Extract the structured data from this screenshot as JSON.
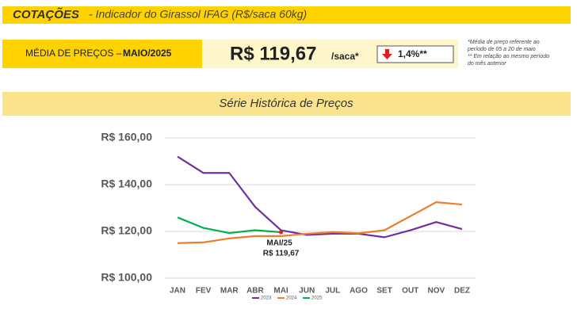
{
  "header": {
    "title": "COTAÇÕES",
    "subtitle": "- Indicador do Girassol IFAG (R$/saca 60kg)"
  },
  "summary": {
    "label": "MÉDIA DE PREÇOS –",
    "period": "MAIO/2025",
    "price": "R$ 119,67",
    "unit": "/saca*",
    "change": "1,4%**",
    "notes": [
      "*Média de preço referente ao",
      "período de 05 a 20 de maio",
      "** Em relação ao mesmo período",
      "do mês anterior"
    ]
  },
  "chart_data": {
    "type": "line",
    "title": "Série Histórica de Preços",
    "categories": [
      "JAN",
      "FEV",
      "MAR",
      "ABR",
      "MAI",
      "JUN",
      "JUL",
      "AGO",
      "SET",
      "OUT",
      "NOV",
      "DEZ"
    ],
    "series": [
      {
        "name": "2023",
        "color": "#7030a0",
        "values": [
          152,
          145,
          145,
          130.5,
          120.5,
          118.5,
          119,
          119,
          117.5,
          120.5,
          124,
          121
        ]
      },
      {
        "name": "2024",
        "color": "#ed7d31",
        "values": [
          115,
          115.3,
          117,
          118,
          118,
          119,
          119.7,
          119.2,
          120.5,
          126.5,
          132.5,
          131.5
        ]
      },
      {
        "name": "2025",
        "color": "#00b050",
        "values": [
          126,
          121.5,
          119.3,
          120.5,
          119.67,
          null,
          null,
          null,
          null,
          null,
          null,
          null
        ]
      }
    ],
    "ylim": [
      100,
      160
    ],
    "yticks": [
      {
        "value": 100,
        "label": "R$ 100,00"
      },
      {
        "value": 120,
        "label": "R$ 120,00"
      },
      {
        "value": 140,
        "label": "R$ 140,00"
      },
      {
        "value": 160,
        "label": "R$ 160,00"
      }
    ],
    "grid": true,
    "annotation": {
      "label": "MAI/25",
      "text": "R$ 119,67",
      "color": "#e02020"
    }
  }
}
